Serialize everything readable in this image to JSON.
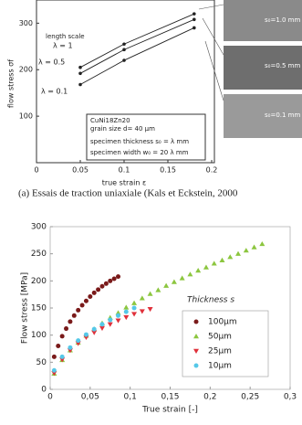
{
  "chart_data": [
    {
      "type": "line",
      "xlabel": "true strain ε",
      "ylabel": "flow stress σf",
      "caption": "(a) Essais de traction uniaxiale (Kals et Eckstein, 2000",
      "annotations": [
        "length scale",
        "CuNi18Zn20",
        "grain size d= 40 µm",
        "specimen thickness s₀ = λ mm",
        "specimen width w₀ = 20 λ mm"
      ],
      "image_labels": [
        "s₀=1.0 mm",
        "s₀=0.5 mm",
        "s₀=0.1 mm"
      ],
      "xlim": [
        0,
        0.2
      ],
      "ylim": [
        0,
        340
      ],
      "xticks": [
        0,
        0.05,
        0.1,
        0.15,
        0.2
      ],
      "yticks": [
        100,
        200,
        300
      ],
      "series": [
        {
          "name": "λ = 1",
          "color": "#222222",
          "x": [
            0.05,
            0.1,
            0.18
          ],
          "values": [
            205,
            255,
            320
          ]
        },
        {
          "name": "λ = 0.5",
          "color": "#222222",
          "x": [
            0.05,
            0.1,
            0.18
          ],
          "values": [
            192,
            243,
            308
          ]
        },
        {
          "name": "λ = 0.1",
          "color": "#222222",
          "x": [
            0.05,
            0.1,
            0.18
          ],
          "values": [
            168,
            220,
            290
          ]
        }
      ]
    },
    {
      "type": "scatter",
      "xlabel": "True strain [-]",
      "ylabel": "Flow stress [MPa]",
      "legend_title": "Thickness s",
      "legend": "center-right",
      "xlim": [
        0,
        0.3
      ],
      "ylim": [
        0,
        300
      ],
      "xticks": [
        0,
        {
          "value": 0.05,
          "label": "0,05"
        },
        {
          "value": 0.1,
          "label": "0,1"
        },
        {
          "value": 0.15,
          "label": "0,15"
        },
        {
          "value": 0.2,
          "label": "0,2"
        },
        {
          "value": 0.25,
          "label": "0,25"
        },
        {
          "value": 0.3,
          "label": "0,3"
        }
      ],
      "yticks": [
        0,
        50,
        100,
        150,
        200,
        250,
        300
      ],
      "series": [
        {
          "name": "100µm",
          "color": "#7a1a1a",
          "marker": "circle",
          "x": [
            0.005,
            0.01,
            0.015,
            0.02,
            0.025,
            0.03,
            0.035,
            0.04,
            0.045,
            0.05,
            0.055,
            0.06,
            0.065,
            0.07,
            0.075,
            0.08,
            0.085
          ],
          "values": [
            60,
            80,
            98,
            112,
            125,
            136,
            146,
            155,
            163,
            171,
            178,
            184,
            190,
            195,
            200,
            204,
            208
          ]
        },
        {
          "name": "50µm",
          "color": "#8cc63f",
          "marker": "triangle-up",
          "x": [
            0.005,
            0.015,
            0.025,
            0.035,
            0.045,
            0.055,
            0.065,
            0.075,
            0.085,
            0.095,
            0.105,
            0.115,
            0.125,
            0.135,
            0.145,
            0.155,
            0.165,
            0.175,
            0.185,
            0.195,
            0.205,
            0.215,
            0.225,
            0.235,
            0.245,
            0.255,
            0.265
          ],
          "values": [
            29,
            54,
            72,
            86,
            99,
            111,
            122,
            132,
            141,
            151,
            159,
            168,
            176,
            183,
            191,
            198,
            205,
            212,
            219,
            225,
            232,
            238,
            244,
            250,
            256,
            262,
            268
          ]
        },
        {
          "name": "25µm",
          "color": "#e0303a",
          "marker": "triangle-down",
          "x": [
            0.005,
            0.015,
            0.025,
            0.035,
            0.045,
            0.055,
            0.065,
            0.075,
            0.085,
            0.095,
            0.105,
            0.115,
            0.125
          ],
          "values": [
            30,
            55,
            72,
            85,
            96,
            105,
            113,
            120,
            127,
            133,
            139,
            144,
            148
          ]
        },
        {
          "name": "10µm",
          "color": "#55c8e8",
          "marker": "circle",
          "x": [
            0.005,
            0.015,
            0.025,
            0.035,
            0.045,
            0.055,
            0.065,
            0.075,
            0.085,
            0.095,
            0.105
          ],
          "values": [
            35,
            60,
            77,
            90,
            101,
            111,
            120,
            128,
            136,
            143,
            150
          ]
        }
      ]
    }
  ]
}
